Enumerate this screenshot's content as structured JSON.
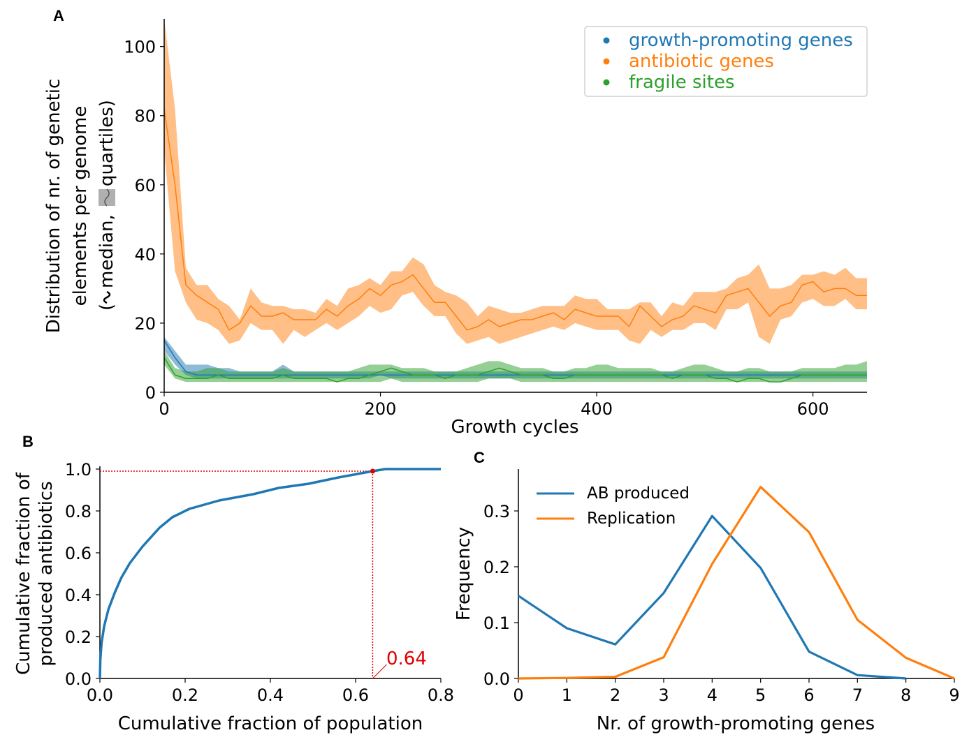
{
  "panel_labels": {
    "a": "A",
    "b": "B",
    "c": "C"
  },
  "colors": {
    "blue": "#1f77b4",
    "orange": "#ff7f0e",
    "green": "#2ca02c",
    "red": "#e00000",
    "legend_icon_gray": "#b0b0b0"
  },
  "chart_data": [
    {
      "id": "A",
      "type": "line",
      "xlabel": "Growth cycles",
      "ylabel_lines": [
        "Distribution of nr. of genetic",
        "elements per genome",
        "(",
        "median,",
        "quartiles)"
      ],
      "xlim": [
        0,
        650
      ],
      "ylim": [
        0,
        108
      ],
      "xticks": [
        0,
        200,
        400,
        600
      ],
      "yticks": [
        0,
        20,
        40,
        60,
        80,
        100
      ],
      "legend_position": "top-right",
      "x": [
        0,
        10,
        20,
        30,
        40,
        50,
        60,
        70,
        80,
        90,
        100,
        110,
        120,
        130,
        140,
        150,
        160,
        170,
        180,
        190,
        200,
        210,
        220,
        230,
        240,
        250,
        260,
        270,
        280,
        290,
        300,
        310,
        320,
        330,
        340,
        350,
        360,
        370,
        380,
        390,
        400,
        410,
        420,
        430,
        440,
        450,
        460,
        470,
        480,
        490,
        500,
        510,
        520,
        530,
        540,
        550,
        560,
        570,
        580,
        590,
        600,
        610,
        620,
        630,
        640,
        650
      ],
      "series": [
        {
          "name": "growth-promoting genes",
          "median": [
            15,
            10,
            6,
            5,
            5,
            5,
            5,
            5,
            5,
            5,
            5,
            5,
            5,
            5,
            5,
            5,
            5,
            5,
            5,
            5,
            5,
            5,
            5,
            5,
            5,
            5,
            5,
            5,
            5,
            5,
            5,
            5,
            5,
            5,
            5,
            5,
            5,
            5,
            5,
            5,
            5,
            5,
            5,
            5,
            5,
            5,
            5,
            5,
            5,
            5,
            5,
            5,
            5,
            5,
            5,
            5,
            5,
            5,
            5,
            5,
            5,
            5,
            5,
            5,
            5,
            5
          ],
          "q1": [
            12,
            8,
            5,
            4,
            4,
            4,
            4,
            4,
            4,
            4,
            4,
            4,
            4,
            4,
            4,
            4,
            4,
            4,
            4,
            4,
            5,
            4,
            4,
            4,
            4,
            4,
            4,
            4,
            4,
            4,
            4,
            4,
            4,
            4,
            4,
            4,
            4,
            4,
            4,
            4,
            4,
            4,
            4,
            4,
            4,
            4,
            4,
            4,
            4,
            4,
            4,
            4,
            4,
            4,
            4,
            4,
            4,
            4,
            4,
            4,
            4,
            4,
            4,
            4,
            4,
            4
          ],
          "q3": [
            16,
            12,
            8,
            8,
            8,
            7,
            7,
            6,
            6,
            6,
            6,
            8,
            6,
            6,
            6,
            6,
            6,
            6,
            6,
            6,
            6,
            6,
            6,
            6,
            6,
            6,
            6,
            6,
            6,
            6,
            6,
            6,
            6,
            6,
            6,
            6,
            6,
            6,
            6,
            6,
            6,
            6,
            6,
            6,
            6,
            6,
            6,
            6,
            6,
            6,
            6,
            6,
            6,
            6,
            6,
            6,
            6,
            6,
            6,
            6,
            6,
            6,
            6,
            6,
            6,
            6
          ]
        },
        {
          "name": "antibiotic genes",
          "median": [
            82,
            60,
            31,
            28,
            26,
            24,
            18,
            20,
            25,
            22,
            22,
            23,
            21,
            21,
            21,
            24,
            22,
            25,
            27,
            30,
            28,
            31,
            32,
            34,
            30,
            26,
            26,
            22,
            18,
            19,
            21,
            19,
            20,
            21,
            21,
            22,
            23,
            21,
            24,
            23,
            22,
            22,
            22,
            19,
            25,
            22,
            19,
            21,
            22,
            25,
            24,
            23,
            28,
            29,
            30,
            26,
            22,
            25,
            26,
            31,
            32,
            29,
            30,
            30,
            28,
            28
          ],
          "q1": [
            70,
            35,
            26,
            21,
            20,
            18,
            14,
            15,
            20,
            18,
            18,
            14,
            18,
            16,
            18,
            20,
            18,
            20,
            22,
            25,
            23,
            24,
            28,
            29,
            25,
            22,
            22,
            17,
            14,
            15,
            16,
            14,
            15,
            16,
            17,
            18,
            19,
            18,
            20,
            19,
            18,
            18,
            18,
            15,
            14,
            18,
            16,
            18,
            18,
            20,
            20,
            18,
            24,
            24,
            26,
            16,
            14,
            21,
            22,
            26,
            27,
            25,
            25,
            27,
            24,
            24
          ],
          "q3": [
            108,
            82,
            36,
            31,
            31,
            27,
            25,
            21,
            30,
            26,
            25,
            25,
            24,
            24,
            23,
            27,
            25,
            30,
            31,
            33,
            31,
            35,
            35,
            39,
            37,
            31,
            29,
            28,
            26,
            22,
            25,
            24,
            23,
            23,
            24,
            25,
            25,
            25,
            28,
            27,
            27,
            24,
            24,
            24,
            26,
            26,
            22,
            26,
            25,
            29,
            29,
            29,
            30,
            33,
            34,
            37,
            30,
            30,
            31,
            34,
            34,
            35,
            34,
            36,
            33,
            33
          ]
        },
        {
          "name": "fragile sites",
          "median": [
            10,
            5,
            4,
            4,
            4,
            5,
            4,
            4,
            4,
            4,
            4,
            5,
            4,
            4,
            4,
            4,
            3,
            4,
            4,
            5,
            6,
            7,
            6,
            5,
            5,
            5,
            4,
            5,
            5,
            5,
            6,
            7,
            6,
            5,
            5,
            5,
            4,
            4,
            5,
            5,
            5,
            5,
            5,
            5,
            5,
            5,
            5,
            4,
            5,
            5,
            5,
            4,
            4,
            3,
            4,
            4,
            3,
            3,
            4,
            5,
            5,
            5,
            5,
            5,
            5,
            5
          ],
          "q1": [
            8,
            4,
            3,
            3,
            3,
            3,
            3,
            3,
            3,
            3,
            3,
            3,
            3,
            3,
            3,
            3,
            3,
            3,
            3,
            3,
            3,
            4,
            3,
            3,
            3,
            3,
            3,
            3,
            3,
            3,
            4,
            4,
            4,
            3,
            3,
            3,
            3,
            3,
            3,
            3,
            3,
            3,
            3,
            3,
            3,
            3,
            3,
            3,
            3,
            3,
            3,
            3,
            3,
            3,
            3,
            3,
            3,
            3,
            3,
            3,
            3,
            3,
            3,
            3,
            3,
            3
          ],
          "q3": [
            12,
            7,
            6,
            6,
            7,
            7,
            6,
            6,
            6,
            6,
            6,
            7,
            6,
            6,
            6,
            6,
            6,
            6,
            7,
            8,
            8,
            8,
            7,
            7,
            7,
            6,
            6,
            6,
            7,
            8,
            9,
            9,
            8,
            7,
            7,
            7,
            6,
            6,
            7,
            7,
            8,
            8,
            7,
            7,
            7,
            7,
            6,
            6,
            7,
            8,
            8,
            7,
            6,
            6,
            7,
            7,
            6,
            6,
            6,
            7,
            7,
            7,
            7,
            8,
            8,
            9
          ]
        }
      ]
    },
    {
      "id": "B",
      "type": "line",
      "xlabel": "Cumulative fraction of population",
      "ylabel_lines": [
        "Cumulative fraction of",
        "produced antibiotics"
      ],
      "xlim": [
        0,
        0.8
      ],
      "ylim": [
        0,
        1.0
      ],
      "xticks": [
        "0.0",
        "0.2",
        "0.4",
        "0.6",
        "0.8"
      ],
      "yticks": [
        "0.0",
        "0.2",
        "0.4",
        "0.6",
        "0.8",
        "1.0"
      ],
      "x": [
        0,
        0.001,
        0.004,
        0.01,
        0.02,
        0.035,
        0.05,
        0.07,
        0.1,
        0.14,
        0.17,
        0.21,
        0.28,
        0.36,
        0.42,
        0.49,
        0.56,
        0.64,
        0.67,
        0.7,
        0.8
      ],
      "y": [
        0,
        0.09,
        0.17,
        0.25,
        0.33,
        0.41,
        0.48,
        0.55,
        0.63,
        0.72,
        0.77,
        0.81,
        0.85,
        0.88,
        0.91,
        0.93,
        0.96,
        0.99,
        1.0,
        1.0,
        1.0
      ],
      "marker": {
        "x": 0.64,
        "y": 0.99
      },
      "annotation": "0.64"
    },
    {
      "id": "C",
      "type": "line",
      "xlabel": "Nr. of growth-promoting genes",
      "ylabel": "Frequency",
      "xlim": [
        0,
        9
      ],
      "ylim": [
        0,
        0.375
      ],
      "xticks": [
        "0",
        "1",
        "2",
        "3",
        "4",
        "5",
        "6",
        "7",
        "8",
        "9"
      ],
      "yticks": [
        "0.0",
        "0.1",
        "0.2",
        "0.3"
      ],
      "legend_position": "top-left",
      "series": [
        {
          "name": "AB produced",
          "x": [
            0,
            1,
            2,
            3,
            4,
            5,
            6,
            7,
            8
          ],
          "values": [
            0.148,
            0.09,
            0.061,
            0.153,
            0.291,
            0.198,
            0.048,
            0.006,
            0.0
          ]
        },
        {
          "name": "Replication",
          "x": [
            0,
            1,
            2,
            3,
            4,
            5,
            6,
            7,
            8,
            9
          ],
          "values": [
            0.0,
            0.001,
            0.003,
            0.038,
            0.205,
            0.343,
            0.262,
            0.105,
            0.037,
            0.0
          ]
        }
      ]
    }
  ]
}
